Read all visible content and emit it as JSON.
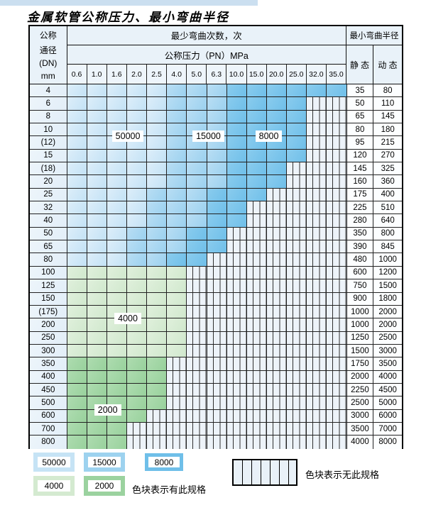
{
  "title": "金属软管公称压力、最小弯曲半径",
  "table": {
    "header": {
      "dn_label_lines": [
        "公称",
        "通径",
        "(DN)",
        "mm"
      ],
      "bend_cycles_label": "最少弯曲次数，次",
      "pressure_label": "公称压力（PN）MPa",
      "pressure_columns": [
        "0.6",
        "1.0",
        "1.6",
        "2.0",
        "2.5",
        "4.0",
        "5.0",
        "6.3",
        "10.0",
        "15.0",
        "20.0",
        "25.0",
        "32.0",
        "35.0"
      ],
      "radius_label": "最小弯曲半径",
      "static_label": "静 态",
      "dynamic_label": "动 态"
    },
    "cell_legend_meaning": {
      "b1": "50000",
      "b2": "15000",
      "b3": "8000",
      "g1": "4000",
      "g2": "2000",
      "h": "无此规格"
    },
    "rows": [
      {
        "dn": "4",
        "static": "35",
        "dynamic": "80",
        "cells": [
          "b1",
          "b1",
          "b1",
          "b1",
          "b1",
          "b2",
          "b2",
          "b2",
          "b3",
          "b3",
          "b3",
          "b3",
          "b3",
          "b3"
        ]
      },
      {
        "dn": "6",
        "static": "50",
        "dynamic": "110",
        "cells": [
          "b1",
          "b1",
          "b1",
          "b1",
          "b1",
          "b2",
          "b2",
          "b2",
          "b3",
          "b3",
          "b3",
          "b3",
          "h",
          "h"
        ]
      },
      {
        "dn": "8",
        "static": "65",
        "dynamic": "145",
        "cells": [
          "b1",
          "b1",
          "b1",
          "b1",
          "b1",
          "b2",
          "b2",
          "b2",
          "b3",
          "b3",
          "b3",
          "b3",
          "h",
          "h"
        ]
      },
      {
        "dn": "10",
        "static": "80",
        "dynamic": "180",
        "cells": [
          "b1",
          "b1",
          "b1",
          "b1",
          "b1",
          "b2",
          "b2",
          "b2",
          "b3",
          "b3",
          "b3",
          "b3",
          "h",
          "h"
        ]
      },
      {
        "dn": "(12)",
        "static": "95",
        "dynamic": "215",
        "cells": [
          "b1",
          "b1",
          "b1",
          "b1",
          "b1",
          "b2",
          "b2",
          "b2",
          "b3",
          "b3",
          "b3",
          "b3",
          "h",
          "h"
        ]
      },
      {
        "dn": "15",
        "static": "120",
        "dynamic": "270",
        "cells": [
          "b1",
          "b1",
          "b1",
          "b1",
          "b1",
          "b2",
          "b2",
          "b2",
          "b3",
          "b3",
          "b3",
          "b3",
          "h",
          "h"
        ]
      },
      {
        "dn": "(18)",
        "static": "145",
        "dynamic": "325",
        "cells": [
          "b1",
          "b1",
          "b1",
          "b1",
          "b1",
          "b2",
          "b2",
          "b2",
          "b3",
          "b3",
          "b3",
          "h",
          "h",
          "h"
        ]
      },
      {
        "dn": "20",
        "static": "160",
        "dynamic": "360",
        "cells": [
          "b1",
          "b1",
          "b1",
          "b1",
          "b1",
          "b2",
          "b2",
          "b2",
          "b3",
          "b3",
          "b3",
          "h",
          "h",
          "h"
        ]
      },
      {
        "dn": "25",
        "static": "175",
        "dynamic": "400",
        "cells": [
          "b1",
          "b1",
          "b1",
          "b1",
          "b2",
          "b2",
          "b2",
          "b3",
          "b3",
          "b3",
          "h",
          "h",
          "h",
          "h"
        ]
      },
      {
        "dn": "32",
        "static": "225",
        "dynamic": "510",
        "cells": [
          "b1",
          "b1",
          "b1",
          "b1",
          "b2",
          "b2",
          "b2",
          "b3",
          "b3",
          "h",
          "h",
          "h",
          "h",
          "h"
        ]
      },
      {
        "dn": "40",
        "static": "280",
        "dynamic": "640",
        "cells": [
          "b1",
          "b1",
          "b1",
          "b1",
          "b2",
          "b2",
          "b2",
          "b3",
          "b3",
          "h",
          "h",
          "h",
          "h",
          "h"
        ]
      },
      {
        "dn": "50",
        "static": "350",
        "dynamic": "800",
        "cells": [
          "b1",
          "b1",
          "b1",
          "b2",
          "b2",
          "b2",
          "b3",
          "b3",
          "h",
          "h",
          "h",
          "h",
          "h",
          "h"
        ]
      },
      {
        "dn": "65",
        "static": "390",
        "dynamic": "845",
        "cells": [
          "b1",
          "b1",
          "b1",
          "b2",
          "b2",
          "b2",
          "b3",
          "b3",
          "h",
          "h",
          "h",
          "h",
          "h",
          "h"
        ]
      },
      {
        "dn": "80",
        "static": "480",
        "dynamic": "1000",
        "cells": [
          "b1",
          "b1",
          "b1",
          "b2",
          "b2",
          "b3",
          "b3",
          "h",
          "h",
          "h",
          "h",
          "h",
          "h",
          "h"
        ]
      },
      {
        "dn": "100",
        "static": "600",
        "dynamic": "1200",
        "cells": [
          "g1",
          "g1",
          "g1",
          "g1",
          "g1",
          "g1",
          "h",
          "h",
          "h",
          "h",
          "h",
          "h",
          "h",
          "h"
        ]
      },
      {
        "dn": "125",
        "static": "750",
        "dynamic": "1500",
        "cells": [
          "g1",
          "g1",
          "g1",
          "g1",
          "g1",
          "g1",
          "h",
          "h",
          "h",
          "h",
          "h",
          "h",
          "h",
          "h"
        ]
      },
      {
        "dn": "150",
        "static": "900",
        "dynamic": "1800",
        "cells": [
          "g1",
          "g1",
          "g1",
          "g1",
          "g1",
          "g1",
          "h",
          "h",
          "h",
          "h",
          "h",
          "h",
          "h",
          "h"
        ]
      },
      {
        "dn": "(175)",
        "static": "1000",
        "dynamic": "2000",
        "cells": [
          "g1",
          "g1",
          "g1",
          "g1",
          "g1",
          "g1",
          "h",
          "h",
          "h",
          "h",
          "h",
          "h",
          "h",
          "h"
        ]
      },
      {
        "dn": "200",
        "static": "1000",
        "dynamic": "2000",
        "cells": [
          "g1",
          "g1",
          "g1",
          "g1",
          "g1",
          "g1",
          "h",
          "h",
          "h",
          "h",
          "h",
          "h",
          "h",
          "h"
        ]
      },
      {
        "dn": "250",
        "static": "1250",
        "dynamic": "2500",
        "cells": [
          "g1",
          "g1",
          "g1",
          "g1",
          "g1",
          "g1",
          "h",
          "h",
          "h",
          "h",
          "h",
          "h",
          "h",
          "h"
        ]
      },
      {
        "dn": "300",
        "static": "1500",
        "dynamic": "3000",
        "cells": [
          "g1",
          "g1",
          "g1",
          "g1",
          "g1",
          "g1",
          "h",
          "h",
          "h",
          "h",
          "h",
          "h",
          "h",
          "h"
        ]
      },
      {
        "dn": "350",
        "static": "1750",
        "dynamic": "3500",
        "cells": [
          "g2",
          "g2",
          "g2",
          "g2",
          "g2",
          "h",
          "h",
          "h",
          "h",
          "h",
          "h",
          "h",
          "h",
          "h"
        ]
      },
      {
        "dn": "400",
        "static": "2000",
        "dynamic": "4000",
        "cells": [
          "g2",
          "g2",
          "g2",
          "g2",
          "g2",
          "h",
          "h",
          "h",
          "h",
          "h",
          "h",
          "h",
          "h",
          "h"
        ]
      },
      {
        "dn": "450",
        "static": "2250",
        "dynamic": "4500",
        "cells": [
          "g2",
          "g2",
          "g2",
          "g2",
          "g2",
          "h",
          "h",
          "h",
          "h",
          "h",
          "h",
          "h",
          "h",
          "h"
        ]
      },
      {
        "dn": "500",
        "static": "2500",
        "dynamic": "5000",
        "cells": [
          "g2",
          "g2",
          "g2",
          "g2",
          "g2",
          "h",
          "h",
          "h",
          "h",
          "h",
          "h",
          "h",
          "h",
          "h"
        ]
      },
      {
        "dn": "600",
        "static": "3000",
        "dynamic": "6000",
        "cells": [
          "g2",
          "g2",
          "g2",
          "g2",
          "h",
          "h",
          "h",
          "h",
          "h",
          "h",
          "h",
          "h",
          "h",
          "h"
        ]
      },
      {
        "dn": "700",
        "static": "3500",
        "dynamic": "7000",
        "cells": [
          "g2",
          "g2",
          "g2",
          "h",
          "h",
          "h",
          "h",
          "h",
          "h",
          "h",
          "h",
          "h",
          "h",
          "h"
        ]
      },
      {
        "dn": "800",
        "static": "4000",
        "dynamic": "8000",
        "cells": [
          "g2",
          "g2",
          "g2",
          "h",
          "h",
          "h",
          "h",
          "h",
          "h",
          "h",
          "h",
          "h",
          "h",
          "h"
        ]
      }
    ],
    "overlays": [
      {
        "text": "50000",
        "col_from": 2,
        "col_to": 3,
        "row_from": 3,
        "row_to": 4
      },
      {
        "text": "15000",
        "col_from": 6,
        "col_to": 7,
        "row_from": 3,
        "row_to": 4
      },
      {
        "text": "8000",
        "col_from": 9,
        "col_to": 10,
        "row_from": 3,
        "row_to": 4
      },
      {
        "text": "4000",
        "col_from": 2,
        "col_to": 3,
        "row_from": 17,
        "row_to": 18
      },
      {
        "text": "2000",
        "col_from": 1,
        "col_to": 2,
        "row_from": 24,
        "row_to": 25
      }
    ]
  },
  "legend": {
    "items": [
      {
        "value": "50000",
        "color_key": "b1"
      },
      {
        "value": "15000",
        "color_key": "b2"
      },
      {
        "value": "8000",
        "color_key": "b3"
      },
      {
        "value": "4000",
        "color_key": "g1"
      },
      {
        "value": "2000",
        "color_key": "g2"
      }
    ],
    "has_spec_note": "色块表示有此规格",
    "no_spec_note": "色块表示无此规格"
  },
  "colors": {
    "b1": "#c6e3f5",
    "b2": "#9dd2ef",
    "b3": "#6fbfe9",
    "g1": "#d4ead0",
    "g2": "#9bd29f",
    "hatch_bg": "#edf3f9",
    "header_bg": "#e9f2f9"
  }
}
